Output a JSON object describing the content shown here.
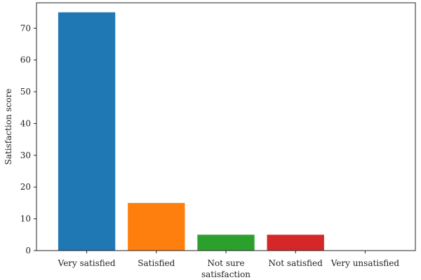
{
  "chart_data": {
    "type": "bar",
    "title": "",
    "xlabel": "",
    "ylabel": "Satisfaction score",
    "categories": [
      [
        "Very satisfied"
      ],
      [
        "Satisfied"
      ],
      [
        "Not sure",
        "satisfaction"
      ],
      [
        "Not satisfied"
      ],
      [
        "Very unsatisfied"
      ]
    ],
    "values": [
      75,
      15,
      5,
      5,
      0
    ],
    "colors": [
      "#1f77b4",
      "#ff7f0e",
      "#2ca02c",
      "#d62728",
      "#9467bd"
    ],
    "ylim": [
      0,
      78
    ],
    "yticks": [
      0,
      10,
      20,
      30,
      40,
      50,
      60,
      70
    ],
    "grid": false,
    "legend": "none"
  }
}
